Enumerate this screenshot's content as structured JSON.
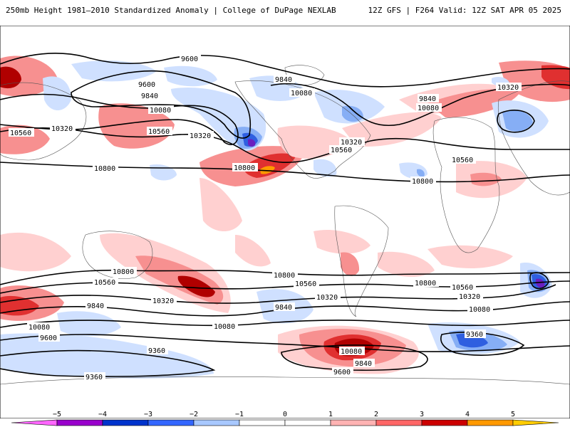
{
  "header": {
    "title": "250mb Height 1981–2010 Standardized Anomaly | College of DuPage NEXLAB",
    "run_info": "12Z GFS | F264 Valid: 12Z SAT APR 05 2025"
  },
  "map": {
    "contour_labels": [
      {
        "id": "c1",
        "text": "9600"
      },
      {
        "id": "c2",
        "text": "9600"
      },
      {
        "id": "c3",
        "text": "9840"
      },
      {
        "id": "c4",
        "text": "9840"
      },
      {
        "id": "c5",
        "text": "10080"
      },
      {
        "id": "c6",
        "text": "10080"
      },
      {
        "id": "c7",
        "text": "10560"
      },
      {
        "id": "c8",
        "text": "10320"
      },
      {
        "id": "c9",
        "text": "10560"
      },
      {
        "id": "c10",
        "text": "10320"
      },
      {
        "id": "c11",
        "text": "10800"
      },
      {
        "id": "c12",
        "text": "10800"
      },
      {
        "id": "c13",
        "text": "9840"
      },
      {
        "id": "c14",
        "text": "10080"
      },
      {
        "id": "c15",
        "text": "10560"
      },
      {
        "id": "c16",
        "text": "10320"
      },
      {
        "id": "c17",
        "text": "10560"
      },
      {
        "id": "c18",
        "text": "10800"
      },
      {
        "id": "c19",
        "text": "10320"
      },
      {
        "id": "c20",
        "text": "10800"
      },
      {
        "id": "c21",
        "text": "10560"
      },
      {
        "id": "c22",
        "text": "10320"
      },
      {
        "id": "c23",
        "text": "9840"
      },
      {
        "id": "c24",
        "text": "10080"
      },
      {
        "id": "c25",
        "text": "9600"
      },
      {
        "id": "c26",
        "text": "9360"
      },
      {
        "id": "c27",
        "text": "9360"
      },
      {
        "id": "c28",
        "text": "10800"
      },
      {
        "id": "c29",
        "text": "10560"
      },
      {
        "id": "c30",
        "text": "10320"
      },
      {
        "id": "c31",
        "text": "9840"
      },
      {
        "id": "c32",
        "text": "10080"
      },
      {
        "id": "c33",
        "text": "10800"
      },
      {
        "id": "c34",
        "text": "10560"
      },
      {
        "id": "c35",
        "text": "10320"
      },
      {
        "id": "c36",
        "text": "10080"
      },
      {
        "id": "c37",
        "text": "10080"
      },
      {
        "id": "c38",
        "text": "9840"
      },
      {
        "id": "c39",
        "text": "9600"
      },
      {
        "id": "c40",
        "text": "9360"
      }
    ]
  },
  "legend": {
    "ticks": [
      "−5",
      "−4",
      "−3",
      "−2",
      "−1",
      "0",
      "1",
      "2",
      "3",
      "4",
      "5"
    ],
    "colors": [
      "#ff66ff",
      "#9900cc",
      "#0033cc",
      "#3366ff",
      "#a8c8ff",
      "#ffffff",
      "#ffffff",
      "#ffb3b3",
      "#ff6666",
      "#cc0000",
      "#ff9900",
      "#ffcc00"
    ]
  },
  "palette": {
    "neg1": "#cfe0ff",
    "neg2": "#86aef5",
    "neg3": "#2f5fe0",
    "neg4": "#6a1fbf",
    "pos1": "#ffd0d0",
    "pos2": "#f79090",
    "pos3": "#e03030",
    "pos4": "#b00000",
    "pos5": "#ff9a00"
  }
}
